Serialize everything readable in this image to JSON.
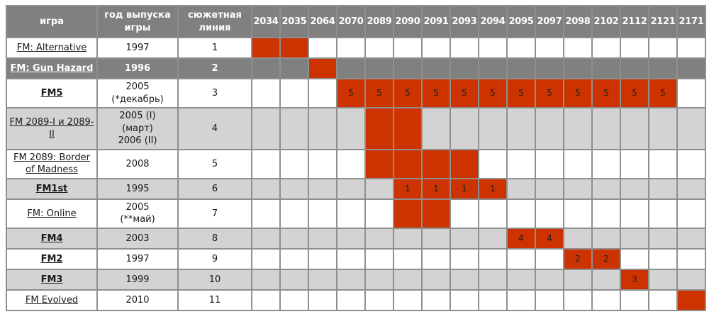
{
  "colors": {
    "accent_red": "#cc3300",
    "header_bg": "#808080",
    "dark_row_bg": "#808080",
    "alt_row_bg": "#d3d3d3",
    "white_row_bg": "#ffffff",
    "grid_border": "#8f8f8f",
    "header_text": "#ffffff",
    "cell_text": "#1a1a1a"
  },
  "chart_data": {
    "type": "table",
    "description": "Timeline matrix of FM game series: which in-universe years each game covers (red cells, some labeled with story-line numbers)",
    "column_headers": {
      "game": "игра",
      "release_year": "год выпуска игры",
      "story_line": "сюжетная линия"
    },
    "year_columns": [
      "2034",
      "2035",
      "2064",
      "2070",
      "2089",
      "2090",
      "2091",
      "2093",
      "2094",
      "2095",
      "2097",
      "2098",
      "2102",
      "2112",
      "2121",
      "2171"
    ],
    "rows": [
      {
        "game": "FM: Alternative",
        "bold": false,
        "style": "white",
        "release_year_lines": [
          "1997"
        ],
        "story_line": "1",
        "marked_years": [
          {
            "year": "2034",
            "label": ""
          },
          {
            "year": "2035",
            "label": ""
          }
        ]
      },
      {
        "game": "FM: Gun Hazard",
        "bold": true,
        "style": "dark",
        "release_year_lines": [
          "1996"
        ],
        "story_line": "2",
        "marked_years": [
          {
            "year": "2064",
            "label": ""
          }
        ]
      },
      {
        "game": "FM5",
        "bold": true,
        "style": "white",
        "release_year_lines": [
          "2005",
          "(*декабрь)"
        ],
        "story_line": "3",
        "marked_years": [
          {
            "year": "2070",
            "label": "5"
          },
          {
            "year": "2089",
            "label": "5"
          },
          {
            "year": "2090",
            "label": "5"
          },
          {
            "year": "2091",
            "label": "5"
          },
          {
            "year": "2093",
            "label": "5"
          },
          {
            "year": "2094",
            "label": "5"
          },
          {
            "year": "2095",
            "label": "5"
          },
          {
            "year": "2097",
            "label": "5"
          },
          {
            "year": "2098",
            "label": "5"
          },
          {
            "year": "2102",
            "label": "5"
          },
          {
            "year": "2112",
            "label": "5"
          },
          {
            "year": "2121",
            "label": "5"
          }
        ]
      },
      {
        "game": "FM 2089-I и 2089-II",
        "bold": false,
        "style": "gray",
        "release_year_lines": [
          "2005 (I)",
          "(март)",
          "2006 (II)"
        ],
        "story_line": "4",
        "marked_years": [
          {
            "year": "2089",
            "label": ""
          },
          {
            "year": "2090",
            "label": ""
          }
        ]
      },
      {
        "game": "FM 2089: Border of Madness",
        "bold": false,
        "style": "white",
        "release_year_lines": [
          "2008"
        ],
        "story_line": "5",
        "marked_years": [
          {
            "year": "2089",
            "label": ""
          },
          {
            "year": "2090",
            "label": ""
          },
          {
            "year": "2091",
            "label": ""
          },
          {
            "year": "2093",
            "label": ""
          }
        ]
      },
      {
        "game": "FM1st",
        "bold": true,
        "style": "gray",
        "release_year_lines": [
          "1995"
        ],
        "story_line": "6",
        "marked_years": [
          {
            "year": "2090",
            "label": "1"
          },
          {
            "year": "2091",
            "label": "1"
          },
          {
            "year": "2093",
            "label": "1"
          },
          {
            "year": "2094",
            "label": "1"
          }
        ]
      },
      {
        "game": "FM: Online",
        "bold": false,
        "style": "white",
        "release_year_lines": [
          "2005",
          "(**май)"
        ],
        "story_line": "7",
        "marked_years": [
          {
            "year": "2090",
            "label": ""
          },
          {
            "year": "2091",
            "label": ""
          }
        ]
      },
      {
        "game": "FM4",
        "bold": true,
        "style": "gray",
        "release_year_lines": [
          "2003"
        ],
        "story_line": "8",
        "marked_years": [
          {
            "year": "2095",
            "label": "4"
          },
          {
            "year": "2097",
            "label": "4"
          }
        ]
      },
      {
        "game": "FM2",
        "bold": true,
        "style": "white",
        "release_year_lines": [
          "1997"
        ],
        "story_line": "9",
        "marked_years": [
          {
            "year": "2098",
            "label": "2"
          },
          {
            "year": "2102",
            "label": "2"
          }
        ]
      },
      {
        "game": "FM3",
        "bold": true,
        "style": "gray",
        "release_year_lines": [
          "1999"
        ],
        "story_line": "10",
        "marked_years": [
          {
            "year": "2112",
            "label": "3"
          }
        ]
      },
      {
        "game": "FM Evolved",
        "bold": false,
        "style": "white",
        "release_year_lines": [
          "2010"
        ],
        "story_line": "11",
        "marked_years": [
          {
            "year": "2171",
            "label": ""
          }
        ]
      }
    ]
  }
}
